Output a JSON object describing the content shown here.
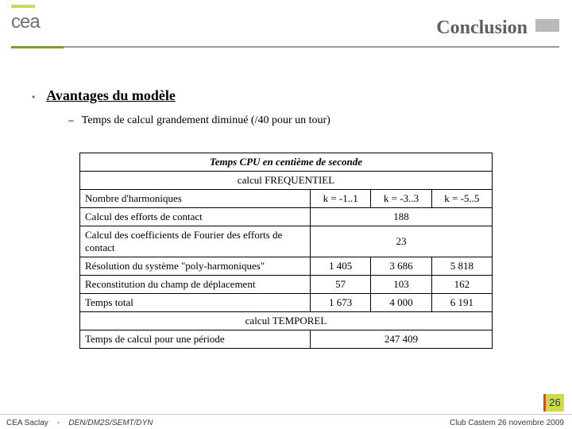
{
  "header": {
    "logo_text": "cea",
    "title": "Conclusion"
  },
  "content": {
    "heading": "Avantages du modèle",
    "sub": "Temps de calcul  grandement diminué (/40 pour un tour)"
  },
  "table": {
    "top": "Temps CPU en centième de seconde",
    "section1": "calcul FREQUENTIEL",
    "section2": "calcul TEMPOREL",
    "col_label": "Nombre d'harmoniques",
    "cols": [
      "k = -1..1",
      "k = -3..3",
      "k = -5..5"
    ],
    "rows": [
      {
        "label": "Calcul des efforts de contact",
        "vals": [
          "188"
        ],
        "span": 3
      },
      {
        "label": "Calcul des coefficients de Fourier des efforts de contact",
        "vals": [
          "23"
        ],
        "span": 3
      },
      {
        "label": "Résolution du système \"poly-harmoniques\"",
        "vals": [
          "1 405",
          "3 686",
          "5 818"
        ],
        "span": 1
      },
      {
        "label": "Reconstitution du champ de déplacement",
        "vals": [
          "57",
          "103",
          "162"
        ],
        "span": 1
      },
      {
        "label": "Temps total",
        "vals": [
          "1 673",
          "4 000",
          "6 191"
        ],
        "span": 1
      }
    ],
    "temporal": {
      "label": "Temps de calcul pour une période",
      "val": "247 409"
    }
  },
  "footer": {
    "page": "26",
    "left_org": "CEA Saclay",
    "left_sep": "-",
    "left_dep": "DEN/DM2S/SEMT/DYN",
    "right": "Club Castem 26 novembre 2009"
  },
  "colors": {
    "accent_green": "#cfd94a",
    "line_green": "#7aa02b",
    "badge_red": "#d44a2a",
    "badge_text": "#1e3a7a"
  }
}
